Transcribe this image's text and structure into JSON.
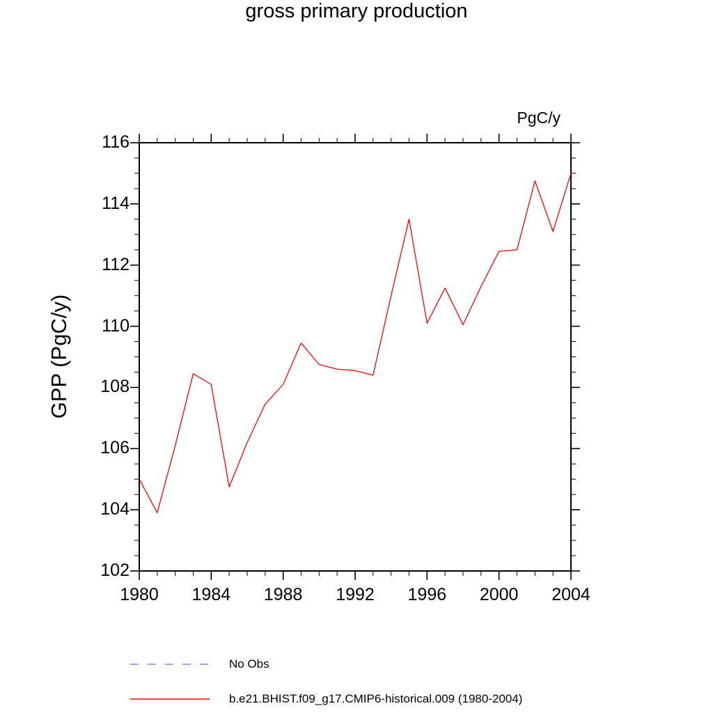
{
  "chart_data": {
    "type": "line",
    "title": "gross primary production",
    "units": "PgC/y",
    "xlabel": "",
    "ylabel": "GPP  (PgC/y)",
    "xlim": [
      1980,
      2004
    ],
    "ylim": [
      102,
      116
    ],
    "xticks": [
      1980,
      1984,
      1988,
      1992,
      1996,
      2000,
      2004
    ],
    "yticks": [
      102,
      104,
      106,
      108,
      110,
      112,
      114,
      116
    ],
    "x_minor_step": 1,
    "y_minor_step": 0.5,
    "grid": false,
    "legend_position": "bottom-left",
    "series": [
      {
        "name": "b.e21.BHIST.f09_g17.CMIP6-historical.009 (1980-2004)",
        "color": "#ff0000",
        "style": "solid",
        "x": [
          1980,
          1981,
          1982,
          1983,
          1984,
          1985,
          1986,
          1987,
          1988,
          1989,
          1990,
          1991,
          1992,
          1993,
          1994,
          1995,
          1996,
          1997,
          1998,
          1999,
          2000,
          2001,
          2002,
          2003,
          2004
        ],
        "values": [
          105.0,
          103.9,
          106.1,
          108.45,
          108.1,
          104.75,
          106.2,
          107.45,
          108.1,
          109.45,
          108.75,
          108.6,
          108.55,
          108.4,
          111.0,
          113.5,
          110.1,
          111.25,
          110.05,
          111.3,
          112.45,
          112.5,
          114.75,
          113.1,
          115.0
        ]
      }
    ],
    "legend": [
      {
        "label": "No Obs",
        "color": "#8080ff",
        "style": "dashed"
      },
      {
        "label": "b.e21.BHIST.f09_g17.CMIP6-historical.009 (1980-2004)",
        "color": "#ff0000",
        "style": "solid"
      }
    ],
    "axis_color": "#000000"
  }
}
